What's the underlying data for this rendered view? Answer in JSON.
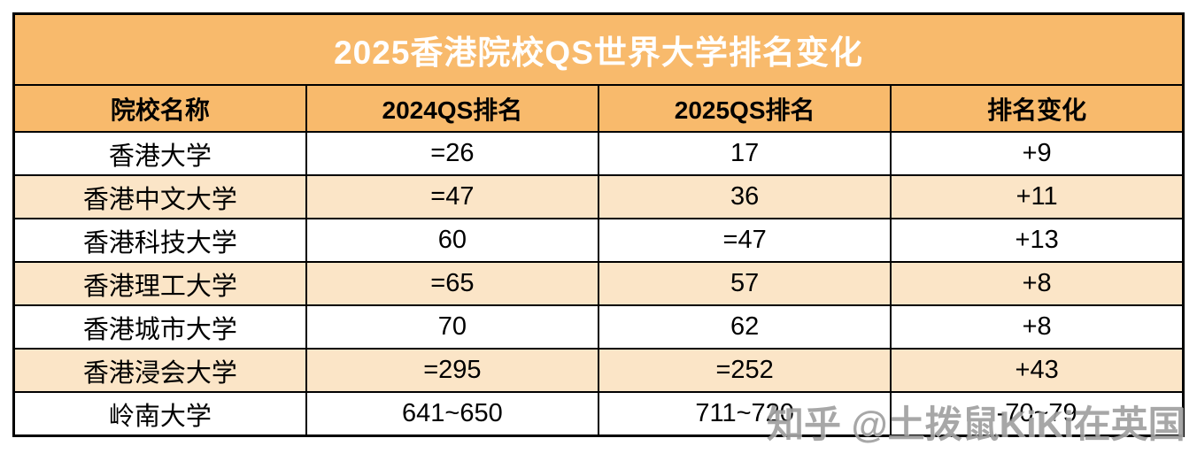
{
  "chart_data": {
    "type": "table",
    "title": "2025香港院校QS世界大学排名变化",
    "columns": [
      "院校名称",
      "2024QS排名",
      "2025QS排名",
      "排名变化"
    ],
    "rows": [
      {
        "name": "香港大学",
        "qs2024": "=26",
        "qs2025": "17",
        "change": "+9",
        "change_direction": "up"
      },
      {
        "name": "香港中文大学",
        "qs2024": "=47",
        "qs2025": "36",
        "change": "+11",
        "change_direction": "up"
      },
      {
        "name": "香港科技大学",
        "qs2024": "60",
        "qs2025": "=47",
        "change": "+13",
        "change_direction": "up"
      },
      {
        "name": "香港理工大学",
        "qs2024": "=65",
        "qs2025": "57",
        "change": "+8",
        "change_direction": "up"
      },
      {
        "name": "香港城市大学",
        "qs2024": "70",
        "qs2025": "62",
        "change": "+8",
        "change_direction": "up"
      },
      {
        "name": "香港浸会大学",
        "qs2024": "=295",
        "qs2025": "=252",
        "change": "+43",
        "change_direction": "up"
      },
      {
        "name": "岭南大学",
        "qs2024": "641~650",
        "qs2025": "711~720",
        "change": "-70~79",
        "change_direction": "down"
      }
    ]
  },
  "watermark": {
    "text": "知乎 @土拨鼠KiKi在英国"
  },
  "colors": {
    "title_bg": "#F8BA6C",
    "header_bg": "#F8BA6C",
    "alt_row_bg": "#FBE5C7",
    "row_bg": "#FFFFFF",
    "border": "#000000",
    "title_text": "#FFFFFF",
    "positive_change": "#1FA14D",
    "negative_change": "#D93B31",
    "watermark_gray": "#949494"
  }
}
